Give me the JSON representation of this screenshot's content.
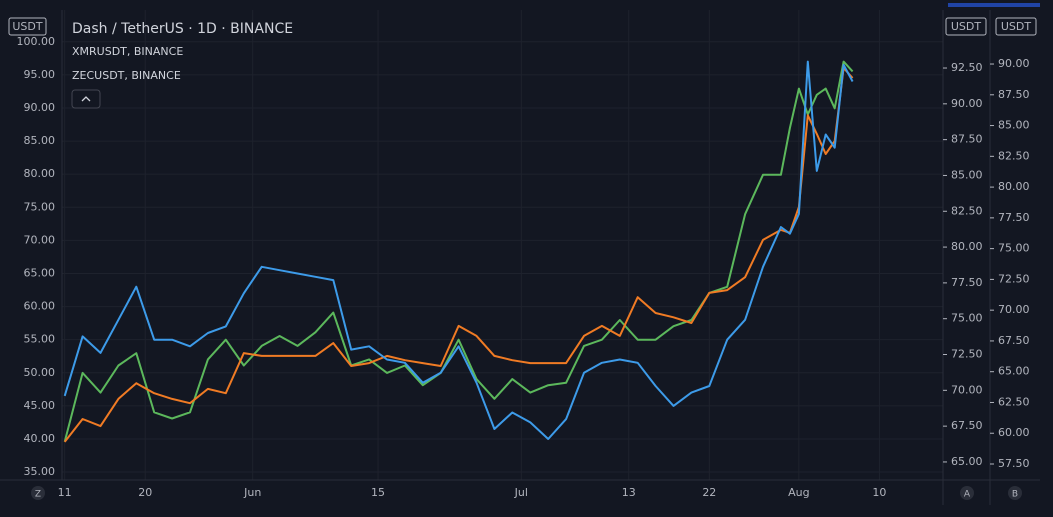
{
  "chart_data": {
    "type": "line",
    "series": [
      {
        "name": "Dash / TetherUS · 1D · BINANCE",
        "color": "#3d9be9",
        "axis": "y",
        "values": [
          46.5,
          55.5,
          53,
          58,
          63,
          55,
          55,
          54,
          56,
          57,
          62,
          66,
          65.5,
          65,
          64.5,
          64,
          53.5,
          54,
          52,
          51.5,
          48.5,
          50,
          54,
          48.5,
          41.5,
          44,
          42.5,
          40,
          43,
          50,
          51.5,
          52,
          51.5,
          48,
          45,
          47,
          48,
          55,
          58,
          66,
          72,
          71,
          74,
          97,
          80.5,
          86,
          84,
          96.5,
          94
        ]
      },
      {
        "name": "XMRUSDT, BINANCE",
        "color": "#f07b24",
        "axis": "y2",
        "values": [
          66.4,
          68,
          67.5,
          69.4,
          70.5,
          69.8,
          69.4,
          69.1,
          70.1,
          69.8,
          72.6,
          72.4,
          72.4,
          72.4,
          72.4,
          73.3,
          71.7,
          71.9,
          72.4,
          72.1,
          71.9,
          71.7,
          74.5,
          73.8,
          72.4,
          72.1,
          71.9,
          71.9,
          71.9,
          73.8,
          74.5,
          73.8,
          76.5,
          75.4,
          75.1,
          74.7,
          76.8,
          77,
          77.9,
          80.5,
          81.2,
          81,
          82.8,
          89.2,
          87.9,
          86.5,
          87.4,
          92.5,
          91.8
        ]
      },
      {
        "name": "ZECUSDT, BINANCE",
        "color": "#5cb85c",
        "axis": "y3",
        "values": [
          59.3,
          64.9,
          63.3,
          65.5,
          66.5,
          61.7,
          61.2,
          61.7,
          66,
          67.6,
          65.5,
          67.1,
          67.9,
          67.1,
          68.2,
          69.8,
          65.5,
          66,
          64.9,
          65.5,
          63.9,
          64.9,
          67.6,
          64.4,
          62.8,
          64.4,
          63.3,
          63.9,
          64.1,
          67.1,
          67.6,
          69.2,
          67.6,
          67.6,
          68.7,
          69.2,
          71.4,
          71.9,
          77.8,
          81,
          81,
          84.8,
          88,
          85.9,
          87.5,
          88,
          86.4,
          90.2,
          89.4
        ]
      }
    ],
    "x": [
      0,
      2,
      4,
      6,
      8,
      10,
      12,
      14,
      16,
      18,
      20,
      22,
      24,
      26,
      28,
      30,
      32,
      34,
      36,
      38,
      40,
      42,
      44,
      46,
      48,
      50,
      52,
      54,
      56,
      58,
      60,
      62,
      64,
      66,
      68,
      70,
      72,
      74,
      76,
      78,
      80,
      81,
      82,
      83,
      84,
      85,
      86,
      87,
      88
    ],
    "xlim": [
      -0.3,
      98.1
    ],
    "xticks": [
      {
        "value": 0,
        "label": "11"
      },
      {
        "value": 9,
        "label": "20"
      },
      {
        "value": 21,
        "label": "Jun"
      },
      {
        "value": 35,
        "label": "15"
      },
      {
        "value": 51,
        "label": "Jul"
      },
      {
        "value": 63,
        "label": "13"
      },
      {
        "value": 72,
        "label": "22"
      },
      {
        "value": 82,
        "label": "Aug"
      },
      {
        "value": 91,
        "label": "10"
      }
    ],
    "ylim": [
      33.8,
      104.8
    ],
    "yticks": [
      {
        "value": 35,
        "label": "35.00"
      },
      {
        "value": 40,
        "label": "40.00"
      },
      {
        "value": 45,
        "label": "45.00"
      },
      {
        "value": 50,
        "label": "50.00"
      },
      {
        "value": 55,
        "label": "55.00"
      },
      {
        "value": 60,
        "label": "60.00"
      },
      {
        "value": 65,
        "label": "65.00"
      },
      {
        "value": 70,
        "label": "70.00"
      },
      {
        "value": 75,
        "label": "75.00"
      },
      {
        "value": 80,
        "label": "80.00"
      },
      {
        "value": 85,
        "label": "85.00"
      },
      {
        "value": 90,
        "label": "90.00"
      },
      {
        "value": 95,
        "label": "95.00"
      },
      {
        "value": 100,
        "label": "100.00"
      }
    ],
    "y2lim": [
      63.74,
      96.55
    ],
    "y2ticks": [
      {
        "value": 65,
        "label": "65.00"
      },
      {
        "value": 67.5,
        "label": "67.50"
      },
      {
        "value": 70,
        "label": "70.00"
      },
      {
        "value": 72.5,
        "label": "72.50"
      },
      {
        "value": 75,
        "label": "75.00"
      },
      {
        "value": 77.5,
        "label": "77.50"
      },
      {
        "value": 80,
        "label": "80.00"
      },
      {
        "value": 82.5,
        "label": "82.50"
      },
      {
        "value": 85,
        "label": "85.00"
      },
      {
        "value": 87.5,
        "label": "87.50"
      },
      {
        "value": 90,
        "label": "90.00"
      },
      {
        "value": 92.5,
        "label": "92.50"
      }
    ],
    "y3lim": [
      56.2,
      94.39
    ],
    "y3ticks": [
      {
        "value": 57.5,
        "label": "57.50"
      },
      {
        "value": 60,
        "label": "60.00"
      },
      {
        "value": 62.5,
        "label": "62.50"
      },
      {
        "value": 65,
        "label": "65.00"
      },
      {
        "value": 67.5,
        "label": "67.50"
      },
      {
        "value": 70,
        "label": "70.00"
      },
      {
        "value": 72.5,
        "label": "72.50"
      },
      {
        "value": 75,
        "label": "75.00"
      },
      {
        "value": 77.5,
        "label": "77.50"
      },
      {
        "value": 80,
        "label": "80.00"
      },
      {
        "value": 82.5,
        "label": "82.50"
      },
      {
        "value": 85,
        "label": "85.00"
      },
      {
        "value": 87.5,
        "label": "87.50"
      },
      {
        "value": 90,
        "label": "90.00"
      }
    ],
    "y_unit": "USDT",
    "y2_unit": "USDT",
    "y3_unit": "USDT",
    "grid": true,
    "scale_buttons": [
      "Z",
      "A",
      "B"
    ]
  }
}
